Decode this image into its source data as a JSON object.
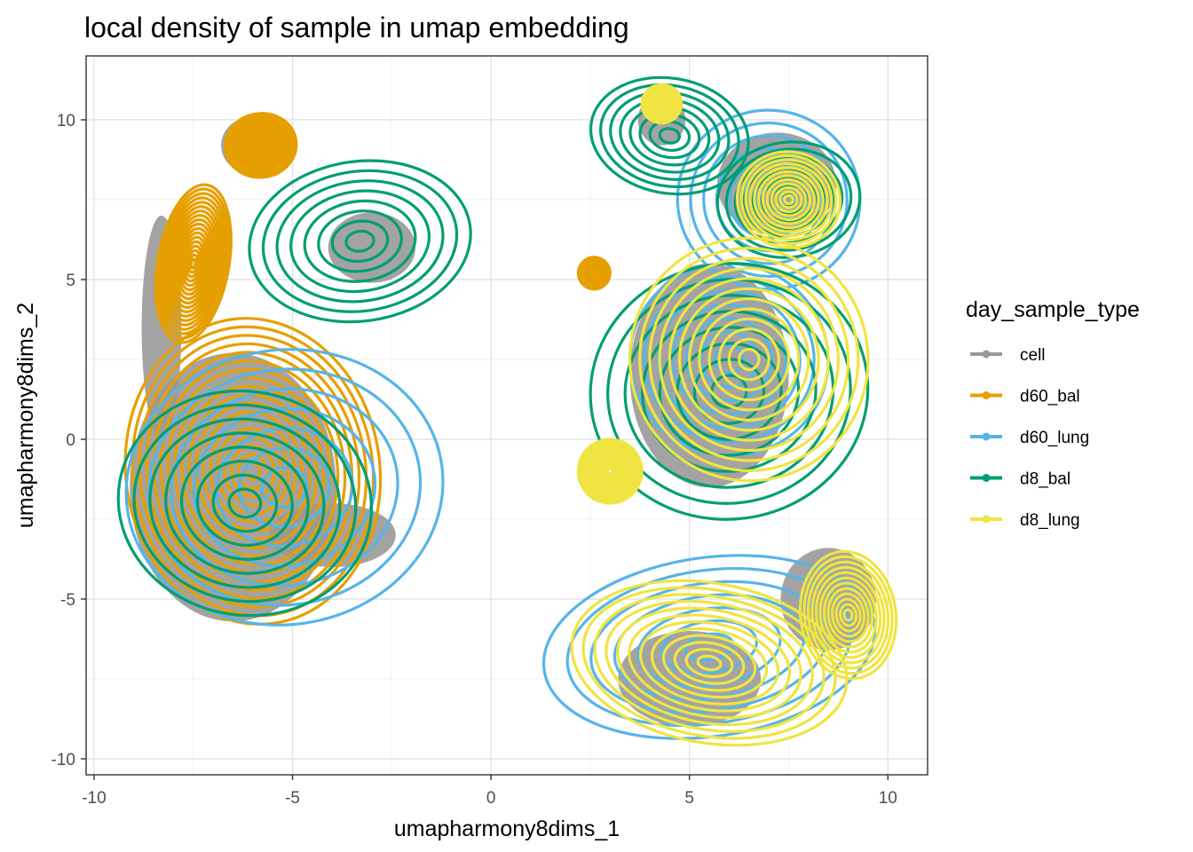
{
  "chart_data": {
    "type": "scatter",
    "title": "local density of sample in umap embedding",
    "xlabel": "umapharmony8dims_1",
    "ylabel": "umapharmony8dims_2",
    "xlim": [
      -10.2,
      11.0
    ],
    "ylim": [
      -10.5,
      12.0
    ],
    "x_ticks": [
      -10,
      -5,
      0,
      5,
      10
    ],
    "y_ticks": [
      -10,
      -5,
      0,
      5,
      10
    ],
    "x_tick_labels": [
      "-10",
      "-5",
      "0",
      "5",
      "10"
    ],
    "y_tick_labels": [
      "-10",
      "-5",
      "0",
      "5",
      "10"
    ],
    "grid": true,
    "legend": {
      "title": "day_sample_type",
      "placement": "right",
      "entries": [
        {
          "name": "cell",
          "color": "#999999"
        },
        {
          "name": "d60_bal",
          "color": "#E69F00"
        },
        {
          "name": "d60_lung",
          "color": "#56B4E9"
        },
        {
          "name": "d8_bal",
          "color": "#009E73"
        },
        {
          "name": "d8_lung",
          "color": "#F0E442"
        }
      ]
    },
    "cell_clusters": [
      {
        "cx": -6.5,
        "cy": -1.5,
        "rx": 2.6,
        "ry": 4.2
      },
      {
        "cx": -4.0,
        "cy": -3.0,
        "rx": 1.6,
        "ry": 1.0
      },
      {
        "cx": -8.3,
        "cy": 3.5,
        "rx": 0.5,
        "ry": 3.5
      },
      {
        "cx": -6.0,
        "cy": 9.2,
        "rx": 0.8,
        "ry": 0.9
      },
      {
        "cx": -3.0,
        "cy": 6.0,
        "rx": 1.1,
        "ry": 1.1
      },
      {
        "cx": 5.5,
        "cy": 2.0,
        "rx": 2.0,
        "ry": 3.5
      },
      {
        "cx": 7.2,
        "cy": 8.0,
        "rx": 1.5,
        "ry": 1.6
      },
      {
        "cx": 4.3,
        "cy": 10.0,
        "rx": 0.6,
        "ry": 0.8
      },
      {
        "cx": 5.0,
        "cy": -7.5,
        "rx": 1.8,
        "ry": 1.5
      },
      {
        "cx": 8.5,
        "cy": -5.0,
        "rx": 1.2,
        "ry": 1.6
      }
    ],
    "series": [
      {
        "name": "d60_bal",
        "color": "#E69F00",
        "levels": 18,
        "blobs": [
          {
            "cx": -6.0,
            "cy": -1.0,
            "rx": 3.2,
            "ry": 4.8
          },
          {
            "cx": -7.5,
            "cy": 5.5,
            "rx": 0.9,
            "ry": 2.5
          },
          {
            "cx": -5.8,
            "cy": 9.2,
            "rx": 0.9,
            "ry": 1.0
          },
          {
            "cx": 2.6,
            "cy": 5.2,
            "rx": 0.4,
            "ry": 0.5
          }
        ]
      },
      {
        "name": "d60_lung",
        "color": "#56B4E9",
        "levels": 7,
        "blobs": [
          {
            "cx": -5.2,
            "cy": -1.5,
            "rx": 4.0,
            "ry": 4.3
          },
          {
            "cx": 7.0,
            "cy": 7.5,
            "rx": 2.3,
            "ry": 2.8
          },
          {
            "cx": 5.5,
            "cy": -6.5,
            "rx": 4.2,
            "ry": 2.8
          },
          {
            "cx": 6.0,
            "cy": 2.5,
            "rx": 2.5,
            "ry": 3.0
          }
        ]
      },
      {
        "name": "d8_bal",
        "color": "#009E73",
        "levels": 8,
        "blobs": [
          {
            "cx": -3.3,
            "cy": 6.2,
            "rx": 2.8,
            "ry": 2.5
          },
          {
            "cx": -6.2,
            "cy": -2.0,
            "rx": 3.2,
            "ry": 3.5
          },
          {
            "cx": 6.0,
            "cy": 1.5,
            "rx": 3.5,
            "ry": 4.0
          },
          {
            "cx": 4.5,
            "cy": 9.5,
            "rx": 2.0,
            "ry": 1.8
          },
          {
            "cx": 7.5,
            "cy": 7.5,
            "rx": 1.8,
            "ry": 1.8
          }
        ]
      },
      {
        "name": "d8_lung",
        "color": "#F0E442",
        "levels": 12,
        "blobs": [
          {
            "cx": 6.5,
            "cy": 2.5,
            "rx": 3.0,
            "ry": 3.8
          },
          {
            "cx": 5.5,
            "cy": -7.0,
            "rx": 3.5,
            "ry": 2.5
          },
          {
            "cx": 9.0,
            "cy": -5.5,
            "rx": 1.2,
            "ry": 2.0
          },
          {
            "cx": 7.5,
            "cy": 7.5,
            "rx": 1.3,
            "ry": 1.5
          },
          {
            "cx": 4.3,
            "cy": 10.5,
            "rx": 0.5,
            "ry": 0.6
          },
          {
            "cx": 3.0,
            "cy": -1.0,
            "rx": 0.8,
            "ry": 1.0
          }
        ]
      }
    ]
  }
}
